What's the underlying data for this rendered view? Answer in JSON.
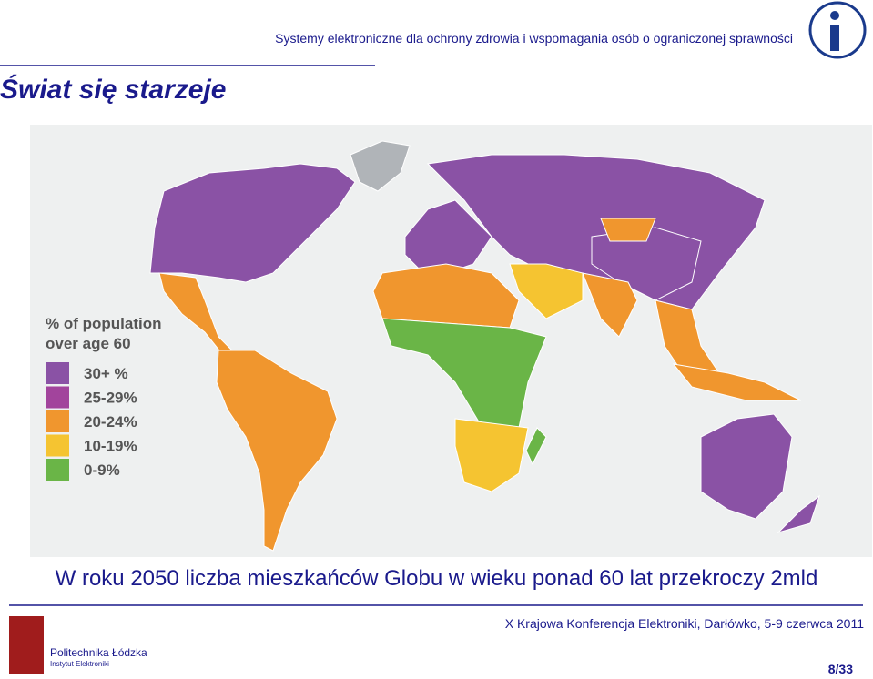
{
  "header": {
    "title": "Systemy elektroniczne dla ochrony zdrowia i wspomagania osób o ograniczonej sprawności",
    "slide_title": "Świat się starzeje"
  },
  "map": {
    "legend": {
      "title_lines": [
        "% of population",
        "over age 60"
      ],
      "items": [
        {
          "label": "30+ %",
          "color": "#8a52a5"
        },
        {
          "label": "25-29%",
          "color": "#a2449c"
        },
        {
          "label": "20-24%",
          "color": "#f0962e"
        },
        {
          "label": "10-19%",
          "color": "#f5c431"
        },
        {
          "label": "0-9%",
          "color": "#6ab547"
        }
      ]
    }
  },
  "caption": "W roku 2050 liczba mieszkańców Globu w wieku ponad 60 lat przekroczy 2mld",
  "footer": {
    "conference": "X Krajowa Konferencja Elektroniki, Darłówko, 5-9 czerwca 2011",
    "university": "Politechnika Łódzka",
    "institute": "Instytut Elektroniki",
    "page": "8/33"
  }
}
